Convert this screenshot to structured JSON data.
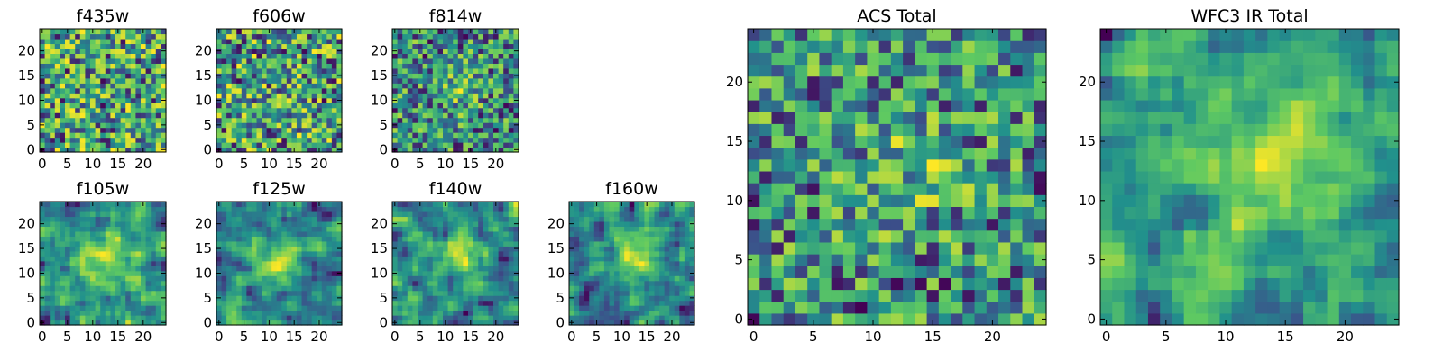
{
  "figure": {
    "description_free": true
  },
  "colormap": {
    "name": "viridis",
    "stops": [
      "#440154",
      "#3b528b",
      "#21918c",
      "#5ec962",
      "#fde725"
    ]
  },
  "chart_data": [
    {
      "type": "heatmap",
      "id": "f435w",
      "title": "f435w",
      "grid_size": 25,
      "xticks": [
        0,
        5,
        10,
        15,
        20
      ],
      "yticks": [
        0,
        5,
        10,
        15,
        20
      ],
      "xlim": [
        0,
        25
      ],
      "ylim": [
        0,
        25
      ],
      "pattern": "noise",
      "seed": 11
    },
    {
      "type": "heatmap",
      "id": "f606w",
      "title": "f606w",
      "grid_size": 25,
      "xticks": [
        0,
        5,
        10,
        15,
        20
      ],
      "yticks": [
        0,
        5,
        10,
        15,
        20
      ],
      "xlim": [
        0,
        25
      ],
      "ylim": [
        0,
        25
      ],
      "pattern": "noise",
      "seed": 23
    },
    {
      "type": "heatmap",
      "id": "f814w",
      "title": "f814w",
      "grid_size": 25,
      "xticks": [
        0,
        5,
        10,
        15,
        20
      ],
      "yticks": [
        0,
        5,
        10,
        15,
        20
      ],
      "xlim": [
        0,
        25
      ],
      "ylim": [
        0,
        25
      ],
      "pattern": "noise-blob",
      "seed": 37
    },
    {
      "type": "heatmap",
      "id": "f105w",
      "title": "f105w",
      "grid_size": 25,
      "xticks": [
        0,
        5,
        10,
        15,
        20
      ],
      "yticks": [
        0,
        5,
        10,
        15,
        20
      ],
      "xlim": [
        0,
        25
      ],
      "ylim": [
        0,
        25
      ],
      "pattern": "smooth-blob",
      "seed": 41
    },
    {
      "type": "heatmap",
      "id": "f125w",
      "title": "f125w",
      "grid_size": 25,
      "xticks": [
        0,
        5,
        10,
        15,
        20
      ],
      "yticks": [
        0,
        5,
        10,
        15,
        20
      ],
      "xlim": [
        0,
        25
      ],
      "ylim": [
        0,
        25
      ],
      "pattern": "smooth-blob",
      "seed": 53
    },
    {
      "type": "heatmap",
      "id": "f140w",
      "title": "f140w",
      "grid_size": 25,
      "xticks": [
        0,
        5,
        10,
        15,
        20
      ],
      "yticks": [
        0,
        5,
        10,
        15,
        20
      ],
      "xlim": [
        0,
        25
      ],
      "ylim": [
        0,
        25
      ],
      "pattern": "smooth-blob",
      "seed": 67
    },
    {
      "type": "heatmap",
      "id": "f160w",
      "title": "f160w",
      "grid_size": 25,
      "xticks": [
        0,
        5,
        10,
        15,
        20
      ],
      "yticks": [
        0,
        5,
        10,
        15,
        20
      ],
      "xlim": [
        0,
        25
      ],
      "ylim": [
        0,
        25
      ],
      "pattern": "smooth-blob",
      "seed": 79
    },
    {
      "type": "heatmap",
      "id": "acs-total",
      "title": "ACS Total",
      "grid_size": 25,
      "xticks": [
        0,
        5,
        10,
        15,
        20
      ],
      "yticks": [
        0,
        5,
        10,
        15,
        20
      ],
      "xlim": [
        0,
        25
      ],
      "ylim": [
        0,
        25
      ],
      "pattern": "noise-blob",
      "seed": 97
    },
    {
      "type": "heatmap",
      "id": "wfc3-ir-total",
      "title": "WFC3 IR Total",
      "grid_size": 25,
      "xticks": [
        0,
        5,
        10,
        15,
        20
      ],
      "yticks": [
        0,
        5,
        10,
        15,
        20
      ],
      "xlim": [
        0,
        25
      ],
      "ylim": [
        0,
        25
      ],
      "pattern": "smooth-blob",
      "seed": 113
    }
  ]
}
